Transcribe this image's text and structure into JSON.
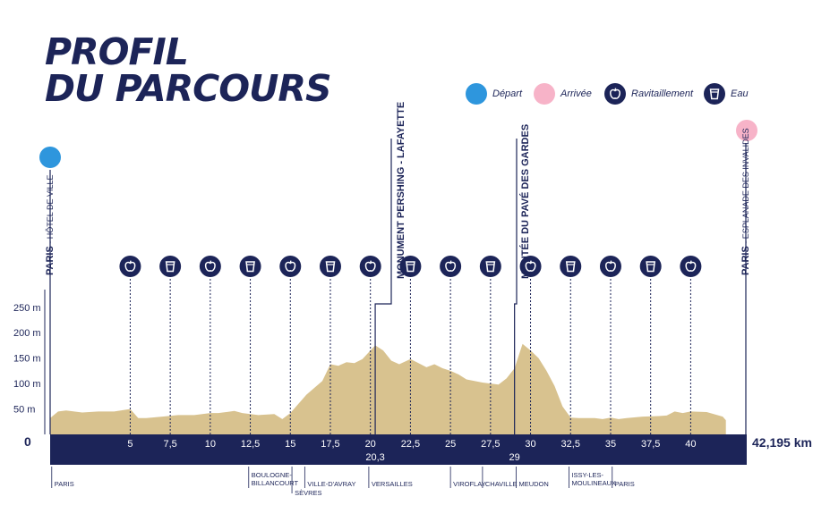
{
  "title_line1": "PROFIL",
  "title_line2": "DU PARCOURS",
  "legend": [
    {
      "label": "Départ",
      "color": "#2e96dd",
      "icon": "start-dot"
    },
    {
      "label": "Arrivée",
      "color": "#f7b3c8",
      "icon": "finish-dot"
    },
    {
      "label": "Ravitaillement",
      "color": "#1c2458",
      "icon": "apple-icon"
    },
    {
      "label": "Eau",
      "color": "#1c2458",
      "icon": "cup-icon"
    }
  ],
  "start_label": {
    "bold": "PARIS",
    "rest": " - HÔTEL DE VILLE"
  },
  "end_label": {
    "bold": "PARIS",
    "rest": " - ESPLANADE DES INVALIDES"
  },
  "peak_labels": [
    {
      "bold": "MONUMENT PERSHING - LAFAYETTE",
      "km": 20.3
    },
    {
      "bold": "MONTÉE DU PAVÉ DES GARDES",
      "km": 29
    }
  ],
  "colors": {
    "navy": "#1c2458",
    "sand": "#d8c28f",
    "blue": "#2e96dd",
    "pink": "#f7b3c8"
  },
  "chart_data": {
    "type": "area",
    "x_unit": "km",
    "y_unit": "m",
    "y_ticks": [
      "250 m",
      "200 m",
      "150 m",
      "100 m",
      "50 m"
    ],
    "y_tick_values": [
      250,
      200,
      150,
      100,
      50
    ],
    "ylim": [
      0,
      270
    ],
    "xlim": [
      0,
      43.5
    ],
    "x_ticks": [
      "5",
      "7,5",
      "10",
      "12,5",
      "15",
      "17,5",
      "20",
      "22,5",
      "25",
      "27,5",
      "30",
      "32,5",
      "35",
      "37,5",
      "40"
    ],
    "x_tick_values": [
      5,
      7.5,
      10,
      12.5,
      15,
      17.5,
      20,
      22.5,
      25,
      27.5,
      30,
      32.5,
      35,
      37.5,
      40
    ],
    "zero_label": "0",
    "distance_label": "42,195 km",
    "special_km": [
      {
        "label": "20,3",
        "km": 20.3
      },
      {
        "label": "29",
        "km": 29
      }
    ],
    "stations": [
      {
        "km": 5,
        "type": "apple"
      },
      {
        "km": 7.5,
        "type": "cup"
      },
      {
        "km": 10,
        "type": "apple"
      },
      {
        "km": 12.5,
        "type": "cup"
      },
      {
        "km": 15,
        "type": "apple"
      },
      {
        "km": 17.5,
        "type": "cup"
      },
      {
        "km": 20,
        "type": "apple"
      },
      {
        "km": 22.5,
        "type": "cup"
      },
      {
        "km": 25,
        "type": "apple"
      },
      {
        "km": 27.5,
        "type": "cup"
      },
      {
        "km": 30,
        "type": "apple"
      },
      {
        "km": 32.5,
        "type": "cup"
      },
      {
        "km": 35,
        "type": "apple"
      },
      {
        "km": 37.5,
        "type": "cup"
      },
      {
        "km": 40,
        "type": "apple"
      }
    ],
    "towns": [
      {
        "label": "PARIS",
        "km": 0.1
      },
      {
        "label": "BOULOGNE-\nBILLANCOURT",
        "km": 12.4
      },
      {
        "label": "SÈVRES",
        "km": 15.1
      },
      {
        "label": "VILLE-D'AVRAY",
        "km": 15.9
      },
      {
        "label": "VERSAILLES",
        "km": 19.9
      },
      {
        "label": "VIROFLAY",
        "km": 25
      },
      {
        "label": "CHAVILLE",
        "km": 27
      },
      {
        "label": "MEUDON",
        "km": 29.1
      },
      {
        "label": "ISSY-LES-\nMOULINEAUX",
        "km": 32.4
      },
      {
        "label": "PARIS",
        "km": 35.1
      }
    ],
    "profile_x": [
      0,
      0.5,
      1,
      2,
      3,
      4,
      5,
      5.5,
      6,
      7,
      8,
      9,
      10,
      10.5,
      11,
      11.5,
      12,
      12.5,
      13,
      14,
      14.5,
      15,
      16,
      17,
      17.5,
      18,
      18.5,
      19,
      19.5,
      20,
      20.3,
      20.8,
      21.3,
      21.8,
      22.5,
      23,
      23.5,
      24,
      24.5,
      25,
      25.5,
      26,
      27,
      28,
      28.5,
      29,
      29.5,
      30,
      30.5,
      31,
      31.5,
      32,
      32.5,
      33,
      34,
      34.5,
      35,
      35.5,
      36,
      37,
      38,
      38.5,
      39,
      39.5,
      40,
      41,
      42,
      42.195
    ],
    "profile_y": [
      32,
      45,
      47,
      43,
      45,
      45,
      50,
      32,
      32,
      35,
      38,
      38,
      42,
      42,
      44,
      46,
      42,
      40,
      38,
      40,
      30,
      42,
      78,
      105,
      138,
      135,
      142,
      140,
      148,
      165,
      175,
      165,
      145,
      138,
      148,
      140,
      132,
      138,
      130,
      125,
      118,
      108,
      102,
      98,
      110,
      130,
      178,
      165,
      150,
      125,
      95,
      55,
      33,
      32,
      32,
      30,
      33,
      30,
      32,
      35,
      36,
      37,
      45,
      42,
      45,
      44,
      35,
      28
    ]
  }
}
